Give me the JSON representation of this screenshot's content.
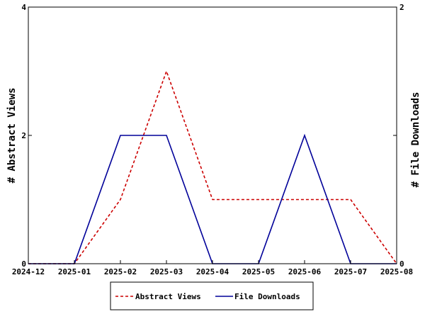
{
  "chart_data": {
    "type": "line",
    "x": [
      "2024-12",
      "2025-01",
      "2025-02",
      "2025-03",
      "2025-04",
      "2025-05",
      "2025-06",
      "2025-07",
      "2025-08"
    ],
    "series": [
      {
        "name": "Abstract Views",
        "axis": "left",
        "color": "#cc0000",
        "dash": true,
        "values": [
          0,
          0,
          1,
          3,
          1,
          1,
          1,
          1,
          0
        ]
      },
      {
        "name": "File Downloads",
        "axis": "right",
        "color": "#000099",
        "dash": false,
        "values": [
          0,
          0,
          1,
          1,
          0,
          0,
          1,
          0,
          0
        ]
      }
    ],
    "ylabel_left": "# Abstract Views",
    "ylabel_right": "# File Downloads",
    "ylim_left": [
      0,
      4
    ],
    "ylim_right": [
      0,
      2
    ],
    "yticks_left": [
      "0",
      "2",
      "4"
    ],
    "yticks_right": [
      "0",
      "1",
      "2"
    ],
    "grid": false,
    "legend_position": "bottom"
  }
}
